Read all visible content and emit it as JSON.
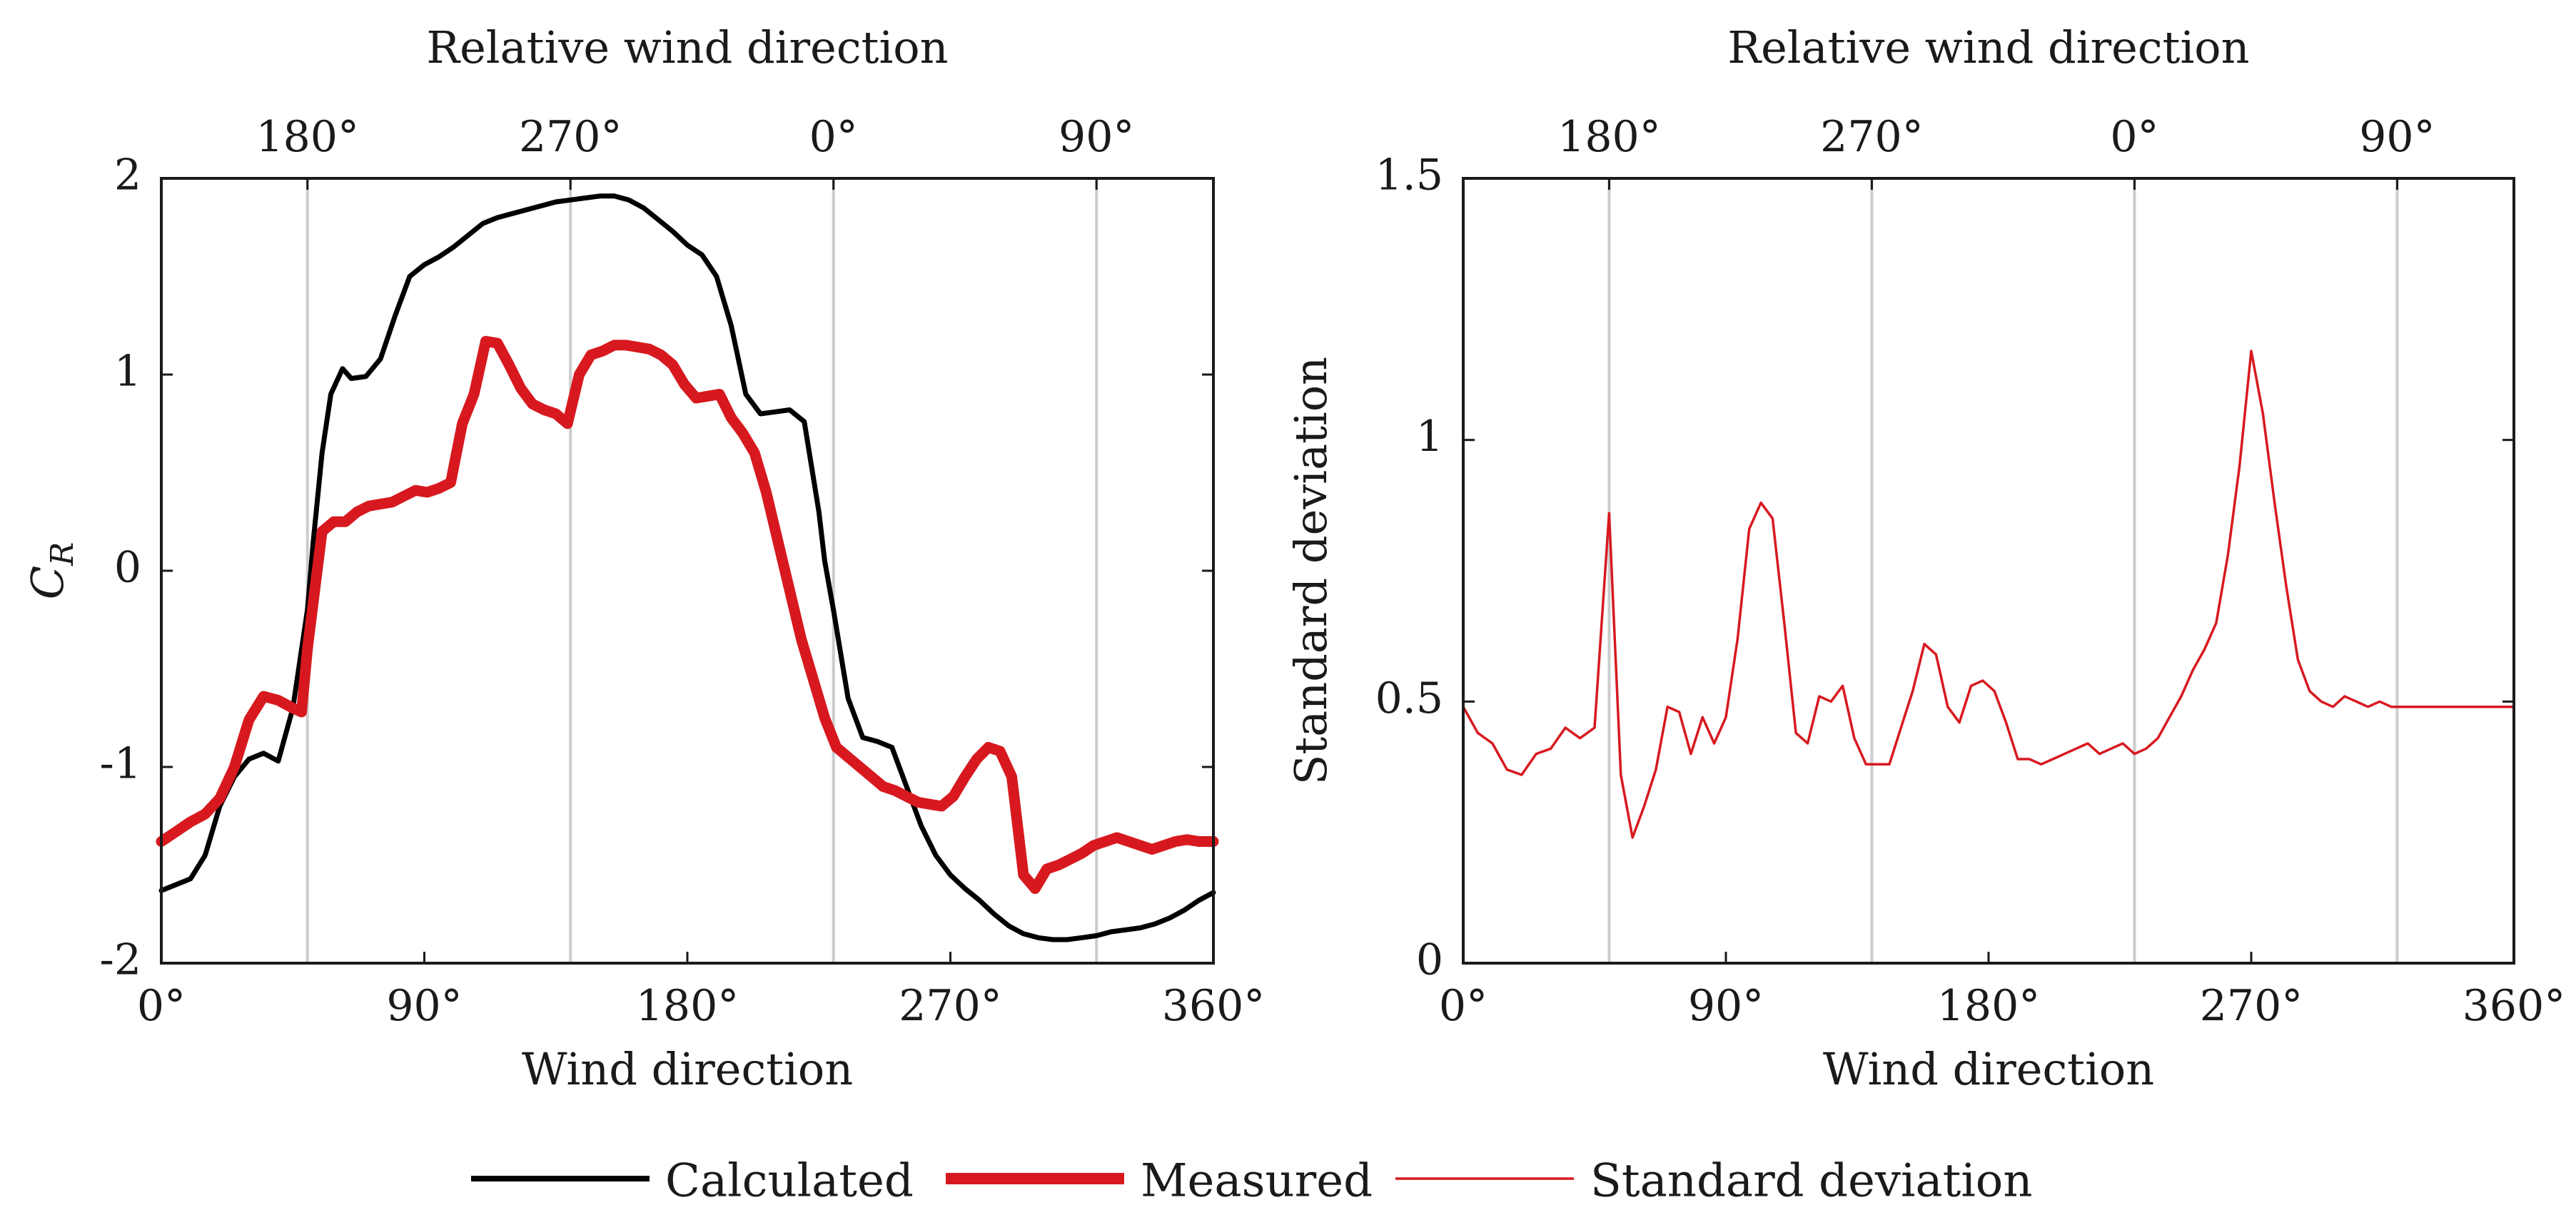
{
  "colors": {
    "calculated": "#000000",
    "measured": "#d7191f",
    "std_dev": "#d7191f",
    "grid": "#cccccc",
    "axis": "#1a1a1a"
  },
  "legend": {
    "entries": [
      {
        "key": "calculated",
        "label": "Calculated"
      },
      {
        "key": "measured",
        "label": "Measured"
      },
      {
        "key": "std_dev",
        "label": "Standard deviation"
      }
    ]
  },
  "chart_data": [
    {
      "type": "line",
      "xlabel": "Wind direction",
      "ylabel_main": "C",
      "ylabel_sub": "R",
      "top_xlabel": "Relative wind direction",
      "xlim": [
        0,
        360
      ],
      "ylim": [
        -2,
        2
      ],
      "xticks": [
        0,
        90,
        180,
        270,
        360
      ],
      "xtick_labels": [
        "0°",
        "90°",
        "180°",
        "270°",
        "360°"
      ],
      "yticks": [
        -2,
        -1,
        0,
        1,
        2
      ],
      "ytick_labels": [
        "-2",
        "-1",
        "0",
        "1",
        "2"
      ],
      "top_ticks": [
        50,
        140,
        230,
        320
      ],
      "top_tick_labels": [
        "180°",
        "270°",
        "0°",
        "90°"
      ],
      "series": [
        {
          "name": "Calculated",
          "key": "calculated",
          "x": [
            0,
            5,
            10,
            15,
            20,
            25,
            30,
            35,
            40,
            45,
            48,
            50,
            52,
            55,
            58,
            62,
            65,
            70,
            75,
            80,
            85,
            90,
            95,
            100,
            105,
            110,
            115,
            120,
            125,
            130,
            135,
            140,
            145,
            150,
            155,
            160,
            165,
            170,
            175,
            180,
            185,
            190,
            195,
            200,
            205,
            210,
            215,
            220,
            225,
            227,
            230,
            235,
            240,
            245,
            250,
            255,
            260,
            265,
            270,
            275,
            280,
            285,
            290,
            295,
            300,
            305,
            310,
            315,
            320,
            325,
            330,
            335,
            340,
            345,
            350,
            355,
            360
          ],
          "values": [
            -1.63,
            -1.6,
            -1.57,
            -1.45,
            -1.2,
            -1.05,
            -0.96,
            -0.93,
            -0.97,
            -0.7,
            -0.4,
            -0.2,
            0.15,
            0.6,
            0.9,
            1.03,
            0.98,
            0.99,
            1.08,
            1.3,
            1.5,
            1.56,
            1.6,
            1.65,
            1.71,
            1.77,
            1.8,
            1.82,
            1.84,
            1.86,
            1.88,
            1.89,
            1.9,
            1.91,
            1.91,
            1.89,
            1.85,
            1.79,
            1.73,
            1.66,
            1.61,
            1.5,
            1.25,
            0.9,
            0.8,
            0.81,
            0.82,
            0.76,
            0.3,
            0.05,
            -0.2,
            -0.65,
            -0.85,
            -0.87,
            -0.9,
            -1.1,
            -1.3,
            -1.45,
            -1.55,
            -1.62,
            -1.68,
            -1.75,
            -1.81,
            -1.85,
            -1.87,
            -1.88,
            -1.88,
            -1.87,
            -1.86,
            -1.84,
            -1.83,
            -1.82,
            -1.8,
            -1.77,
            -1.73,
            -1.68,
            -1.64
          ]
        },
        {
          "name": "Measured",
          "key": "measured",
          "x": [
            0,
            5,
            10,
            15,
            20,
            25,
            30,
            35,
            40,
            45,
            48,
            50,
            55,
            59,
            63,
            67,
            71,
            75,
            79,
            83,
            87,
            91,
            95,
            99,
            103,
            107,
            111,
            115,
            119,
            123,
            127,
            131,
            135,
            139,
            143,
            147,
            151,
            155,
            159,
            163,
            167,
            171,
            175,
            179,
            183,
            187,
            191,
            195,
            199,
            203,
            207,
            211,
            215,
            219,
            223,
            227,
            231,
            235,
            239,
            243,
            247,
            251,
            255,
            259,
            263,
            267,
            271,
            275,
            279,
            283,
            287,
            291,
            295,
            299,
            303,
            307,
            311,
            315,
            319,
            323,
            327,
            331,
            335,
            339,
            343,
            347,
            351,
            355,
            360
          ],
          "values": [
            -1.38,
            -1.33,
            -1.28,
            -1.24,
            -1.16,
            -1.0,
            -0.76,
            -0.64,
            -0.66,
            -0.7,
            -0.72,
            -0.4,
            0.2,
            0.25,
            0.25,
            0.3,
            0.33,
            0.34,
            0.35,
            0.38,
            0.41,
            0.4,
            0.42,
            0.45,
            0.75,
            0.9,
            1.17,
            1.16,
            1.05,
            0.93,
            0.85,
            0.82,
            0.8,
            0.75,
            1.0,
            1.1,
            1.12,
            1.15,
            1.15,
            1.14,
            1.13,
            1.1,
            1.05,
            0.95,
            0.88,
            0.89,
            0.9,
            0.78,
            0.7,
            0.6,
            0.4,
            0.15,
            -0.1,
            -0.35,
            -0.55,
            -0.75,
            -0.9,
            -0.95,
            -1.0,
            -1.05,
            -1.1,
            -1.12,
            -1.15,
            -1.18,
            -1.19,
            -1.2,
            -1.15,
            -1.05,
            -0.96,
            -0.9,
            -0.92,
            -1.05,
            -1.55,
            -1.62,
            -1.52,
            -1.5,
            -1.47,
            -1.44,
            -1.4,
            -1.38,
            -1.36,
            -1.38,
            -1.4,
            -1.42,
            -1.4,
            -1.38,
            -1.37,
            -1.38,
            -1.38
          ]
        }
      ]
    },
    {
      "type": "line",
      "xlabel": "Wind direction",
      "ylabel": "Standard deviation",
      "top_xlabel": "Relative wind direction",
      "xlim": [
        0,
        360
      ],
      "ylim": [
        0,
        1.5
      ],
      "xticks": [
        0,
        90,
        180,
        270,
        360
      ],
      "xtick_labels": [
        "0°",
        "90°",
        "180°",
        "270°",
        "360°"
      ],
      "yticks": [
        0,
        0.5,
        1,
        1.5
      ],
      "ytick_labels": [
        "0",
        "0.5",
        "1",
        "1.5"
      ],
      "top_ticks": [
        50,
        140,
        230,
        320
      ],
      "top_tick_labels": [
        "180°",
        "270°",
        "0°",
        "90°"
      ],
      "series": [
        {
          "name": "Standard deviation",
          "key": "std_dev",
          "x": [
            0,
            5,
            10,
            15,
            20,
            25,
            30,
            35,
            40,
            45,
            50,
            54,
            58,
            62,
            66,
            70,
            74,
            78,
            82,
            86,
            90,
            94,
            98,
            102,
            106,
            110,
            114,
            118,
            122,
            126,
            130,
            134,
            138,
            142,
            146,
            150,
            154,
            158,
            162,
            166,
            170,
            174,
            178,
            182,
            186,
            190,
            194,
            198,
            202,
            206,
            210,
            214,
            218,
            222,
            226,
            230,
            234,
            238,
            242,
            246,
            250,
            254,
            258,
            262,
            266,
            270,
            274,
            278,
            282,
            286,
            290,
            294,
            298,
            302,
            306,
            310,
            314,
            318,
            322,
            326,
            330,
            334,
            338,
            342,
            346,
            350,
            354,
            358,
            360
          ],
          "values": [
            0.49,
            0.44,
            0.42,
            0.37,
            0.36,
            0.4,
            0.41,
            0.45,
            0.43,
            0.45,
            0.86,
            0.36,
            0.24,
            0.3,
            0.37,
            0.49,
            0.48,
            0.4,
            0.47,
            0.42,
            0.47,
            0.62,
            0.83,
            0.88,
            0.85,
            0.65,
            0.44,
            0.42,
            0.51,
            0.5,
            0.53,
            0.43,
            0.38,
            0.38,
            0.38,
            0.45,
            0.52,
            0.61,
            0.59,
            0.49,
            0.46,
            0.53,
            0.54,
            0.52,
            0.46,
            0.39,
            0.39,
            0.38,
            0.39,
            0.4,
            0.41,
            0.42,
            0.4,
            0.41,
            0.42,
            0.4,
            0.41,
            0.43,
            0.47,
            0.51,
            0.56,
            0.6,
            0.65,
            0.78,
            0.95,
            1.17,
            1.05,
            0.88,
            0.72,
            0.58,
            0.52,
            0.5,
            0.49,
            0.51,
            0.5,
            0.49,
            0.5,
            0.49,
            0.49,
            0.49,
            0.49,
            0.49,
            0.49,
            0.49,
            0.49,
            0.49,
            0.49,
            0.49,
            0.49
          ]
        }
      ]
    }
  ]
}
